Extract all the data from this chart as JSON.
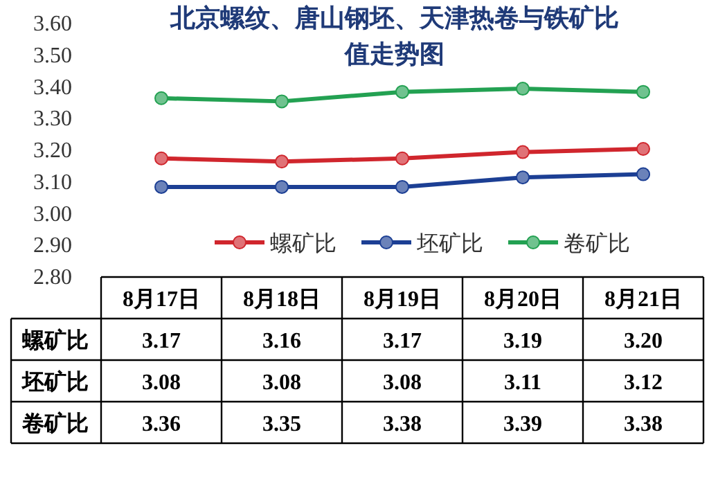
{
  "chart_data": {
    "type": "line",
    "title": "北京螺纹、唐山钢坯、天津热卷与铁矿比值走势图",
    "categories": [
      "8月17日",
      "8月18日",
      "8月19日",
      "8月20日",
      "8月21日"
    ],
    "series": [
      {
        "name": "螺矿比",
        "color": "#d0262d",
        "values": [
          3.17,
          3.16,
          3.17,
          3.19,
          3.2
        ],
        "value_labels": [
          "3.17",
          "3.16",
          "3.17",
          "3.19",
          "3.20"
        ]
      },
      {
        "name": "坯矿比",
        "color": "#1c3f94",
        "values": [
          3.08,
          3.08,
          3.08,
          3.11,
          3.12
        ],
        "value_labels": [
          "3.08",
          "3.08",
          "3.08",
          "3.11",
          "3.12"
        ]
      },
      {
        "name": "卷矿比",
        "color": "#23a152",
        "values": [
          3.36,
          3.35,
          3.38,
          3.39,
          3.38
        ],
        "value_labels": [
          "3.36",
          "3.35",
          "3.38",
          "3.39",
          "3.38"
        ]
      }
    ],
    "ylim": [
      2.8,
      3.6
    ],
    "yticks": [
      {
        "value": 2.8,
        "label": "2.80"
      },
      {
        "value": 2.9,
        "label": "2.90"
      },
      {
        "value": 3.0,
        "label": "3.00"
      },
      {
        "value": 3.1,
        "label": "3.10"
      },
      {
        "value": 3.2,
        "label": "3.20"
      },
      {
        "value": 3.3,
        "label": "3.30"
      },
      {
        "value": 3.4,
        "label": "3.40"
      },
      {
        "value": 3.5,
        "label": "3.50"
      },
      {
        "value": 3.6,
        "label": "3.60"
      }
    ],
    "marker": "circle",
    "legend": "bottom",
    "grid": false
  }
}
